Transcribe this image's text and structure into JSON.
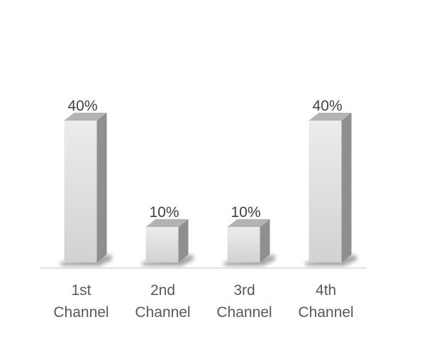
{
  "chart_data": {
    "type": "bar",
    "style": "3d-column",
    "categories": [
      "1st Channel",
      "2nd Channel",
      "3rd Channel",
      "4th Channel"
    ],
    "category_lines": [
      [
        "1st",
        "Channel"
      ],
      [
        "2nd",
        "Channel"
      ],
      [
        "3rd",
        "Channel"
      ],
      [
        "4th",
        "Channel"
      ]
    ],
    "values": [
      40,
      10,
      10,
      40
    ],
    "data_labels": [
      "40%",
      "10%",
      "10%",
      "40%"
    ],
    "value_unit": "%",
    "title": "",
    "xlabel": "",
    "ylabel": "",
    "ylim": [
      0,
      70
    ],
    "grid": false,
    "legend": "none",
    "colors": {
      "bar_front_top": "#ececec",
      "bar_front_bottom": "#d2d2d2",
      "bar_side": "#8f8f8f",
      "bar_top": "#b3b3b3",
      "axis_line": "#d9d9d9"
    }
  }
}
